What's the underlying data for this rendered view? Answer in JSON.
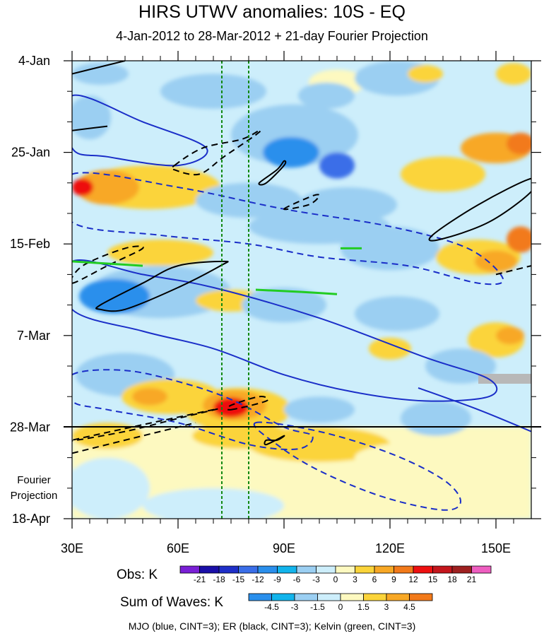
{
  "chart_data": {
    "type": "heatmap",
    "title": "HIRS UTWV anomalies: 10S - EQ",
    "subtitle": "4-Jan-2012 to 28-Mar-2012 + 21-day Fourier Projection",
    "x_ticks": [
      "30E",
      "60E",
      "90E",
      "120E",
      "150E"
    ],
    "x_tick_values": [
      30,
      60,
      90,
      120,
      150
    ],
    "xlim": [
      30,
      160
    ],
    "y_ticks": [
      "4-Jan",
      "25-Jan",
      "15-Feb",
      "7-Mar",
      "28-Mar",
      "18-Apr"
    ],
    "y_tick_days": [
      0,
      21,
      42,
      63,
      84,
      105
    ],
    "ylim_days": [
      0,
      105
    ],
    "projection_start_day": 84,
    "projection_label": [
      "Fourier",
      "Projection"
    ],
    "reference_lines_lon": [
      72.5,
      80
    ],
    "obs_colorbar": {
      "label": "Obs: K",
      "levels": [
        "-21",
        "-18",
        "-15",
        "-12",
        "-9",
        "-6",
        "-3",
        "0",
        "3",
        "6",
        "9",
        "12",
        "15",
        "18",
        "21"
      ],
      "colors": [
        "#7a1fd6",
        "#1a0fa8",
        "#1f2fc8",
        "#3a6ee8",
        "#2a8fec",
        "#12b4ec",
        "#9bcff2",
        "#cdeefb",
        "#fdf9c0",
        "#fbd43a",
        "#f8a825",
        "#f27a1a",
        "#ee1010",
        "#c4161c",
        "#9e2020",
        "#ee5ec0"
      ]
    },
    "waves_colorbar": {
      "label": "Sum of Waves: K",
      "levels": [
        "-4.5",
        "-3",
        "-1.5",
        "0",
        "1.5",
        "3",
        "4.5"
      ],
      "colors": [
        "#2a8fec",
        "#12b4ec",
        "#9bcff2",
        "#cdeefb",
        "#fdf9c0",
        "#fbd43a",
        "#f8a825",
        "#f27a1a"
      ]
    },
    "caption": "MJO (blue, CINT=3); ER (black, CINT=3); Kelvin (green, CINT=3)",
    "anomaly_patches": [
      {
        "lon": 35,
        "day": 13,
        "rx": 6,
        "ry": 5,
        "color": "#9bcff2"
      },
      {
        "lon": 38,
        "day": 3,
        "rx": 8,
        "ry": 2.5,
        "color": "#9bcff2"
      },
      {
        "lon": 70,
        "day": 7,
        "rx": 15,
        "ry": 4,
        "color": "#9bcff2"
      },
      {
        "lon": 93,
        "day": 17,
        "rx": 18,
        "ry": 7,
        "color": "#9bcff2"
      },
      {
        "lon": 92,
        "day": 21,
        "rx": 8,
        "ry": 3.5,
        "color": "#2a8fec"
      },
      {
        "lon": 105,
        "day": 24,
        "rx": 5,
        "ry": 3,
        "color": "#3a6ee8"
      },
      {
        "lon": 105,
        "day": 5,
        "rx": 8,
        "ry": 3,
        "color": "#fdf9c0"
      },
      {
        "lon": 122,
        "day": 4,
        "rx": 12,
        "ry": 4,
        "color": "#9bcff2"
      },
      {
        "lon": 102,
        "day": 8,
        "rx": 8,
        "ry": 3,
        "color": "#9bcff2"
      },
      {
        "lon": 130,
        "day": 3,
        "rx": 5,
        "ry": 2,
        "color": "#fbd43a"
      },
      {
        "lon": 155,
        "day": 3,
        "rx": 5,
        "ry": 2.5,
        "color": "#fbd43a"
      },
      {
        "lon": 150,
        "day": 20,
        "rx": 10,
        "ry": 3.5,
        "color": "#f8a825"
      },
      {
        "lon": 157,
        "day": 19,
        "rx": 4,
        "ry": 2.5,
        "color": "#f27a1a"
      },
      {
        "lon": 135,
        "day": 26,
        "rx": 12,
        "ry": 4,
        "color": "#fbd43a"
      },
      {
        "lon": 52,
        "day": 29,
        "rx": 20,
        "ry": 5,
        "color": "#fbd43a"
      },
      {
        "lon": 40,
        "day": 29,
        "rx": 9,
        "ry": 4,
        "color": "#f8a825"
      },
      {
        "lon": 33,
        "day": 29,
        "rx": 3,
        "ry": 2,
        "color": "#ee1010"
      },
      {
        "lon": 80,
        "day": 32,
        "rx": 15,
        "ry": 4,
        "color": "#9bcff2"
      },
      {
        "lon": 108,
        "day": 33,
        "rx": 14,
        "ry": 4,
        "color": "#9bcff2"
      },
      {
        "lon": 100,
        "day": 38,
        "rx": 20,
        "ry": 4,
        "color": "#9bcff2"
      },
      {
        "lon": 120,
        "day": 43,
        "rx": 14,
        "ry": 5,
        "color": "#9bcff2"
      },
      {
        "lon": 55,
        "day": 44,
        "rx": 15,
        "ry": 3,
        "color": "#fbd43a"
      },
      {
        "lon": 145,
        "day": 45,
        "rx": 12,
        "ry": 4,
        "color": "#fbd43a"
      },
      {
        "lon": 150,
        "day": 46,
        "rx": 6,
        "ry": 2.5,
        "color": "#f8a825"
      },
      {
        "lon": 157,
        "day": 41,
        "rx": 4,
        "ry": 3,
        "color": "#f27a1a"
      },
      {
        "lon": 55,
        "day": 53,
        "rx": 20,
        "ry": 6,
        "color": "#9bcff2"
      },
      {
        "lon": 42,
        "day": 54,
        "rx": 10,
        "ry": 4,
        "color": "#2a8fec"
      },
      {
        "lon": 75,
        "day": 55,
        "rx": 10,
        "ry": 2.5,
        "color": "#fbd43a"
      },
      {
        "lon": 90,
        "day": 56,
        "rx": 12,
        "ry": 4,
        "color": "#9bcff2"
      },
      {
        "lon": 122,
        "day": 58,
        "rx": 12,
        "ry": 4,
        "color": "#9bcff2"
      },
      {
        "lon": 120,
        "day": 66,
        "rx": 6,
        "ry": 2.5,
        "color": "#fbd43a"
      },
      {
        "lon": 150,
        "day": 64,
        "rx": 8,
        "ry": 4,
        "color": "#fbd43a"
      },
      {
        "lon": 154,
        "day": 63,
        "rx": 4,
        "ry": 2,
        "color": "#f8a825"
      },
      {
        "lon": 140,
        "day": 70,
        "rx": 10,
        "ry": 4,
        "color": "#9bcff2"
      },
      {
        "lon": 45,
        "day": 72,
        "rx": 14,
        "ry": 5,
        "color": "#9bcff2"
      },
      {
        "lon": 58,
        "day": 77,
        "rx": 14,
        "ry": 4,
        "color": "#fbd43a"
      },
      {
        "lon": 52,
        "day": 77,
        "rx": 5,
        "ry": 2,
        "color": "#f8a825"
      },
      {
        "lon": 77,
        "day": 80,
        "rx": 15,
        "ry": 5,
        "color": "#fbd43a"
      },
      {
        "lon": 76,
        "day": 79,
        "rx": 9,
        "ry": 3.5,
        "color": "#f8a825"
      },
      {
        "lon": 75,
        "day": 79.5,
        "rx": 5,
        "ry": 2.3,
        "color": "#ee1010"
      },
      {
        "lon": 100,
        "day": 80,
        "rx": 10,
        "ry": 3,
        "color": "#9bcff2"
      },
      {
        "lon": 133,
        "day": 82,
        "rx": 10,
        "ry": 4,
        "color": "#9bcff2"
      },
      {
        "lon": 40,
        "day": 86,
        "rx": 10,
        "ry": 3,
        "color": "#fbd43a"
      },
      {
        "lon": 78,
        "day": 86,
        "rx": 14,
        "ry": 3,
        "color": "#fbd43a"
      },
      {
        "lon": 100,
        "day": 88,
        "rx": 20,
        "ry": 4,
        "color": "#fbd43a"
      },
      {
        "lon": 135,
        "day": 91,
        "rx": 25,
        "ry": 4,
        "color": "#fdf9c0"
      },
      {
        "lon": 40,
        "day": 98,
        "rx": 12,
        "ry": 7,
        "color": "#cdeefb"
      },
      {
        "lon": 70,
        "day": 102,
        "rx": 20,
        "ry": 4,
        "color": "#cdeefb"
      }
    ],
    "wave_contours": [
      {
        "wave": "MJO",
        "color": "#1a2ec8",
        "dashed": false,
        "points": [
          [
            30,
            8
          ],
          [
            50,
            14
          ],
          [
            68,
            20
          ],
          [
            60,
            24
          ],
          [
            40,
            22
          ],
          [
            30,
            20
          ]
        ]
      },
      {
        "wave": "MJO",
        "color": "#1a2ec8",
        "dashed": true,
        "points": [
          [
            30,
            26
          ],
          [
            60,
            29
          ],
          [
            90,
            34
          ],
          [
            120,
            38
          ],
          [
            142,
            43
          ],
          [
            152,
            50
          ],
          [
            145,
            51
          ],
          [
            125,
            47
          ],
          [
            100,
            45
          ],
          [
            80,
            42
          ],
          [
            55,
            40
          ],
          [
            30,
            37
          ]
        ]
      },
      {
        "wave": "MJO",
        "color": "#1a2ec8",
        "dashed": false,
        "points": [
          [
            30,
            46
          ],
          [
            50,
            49
          ],
          [
            70,
            52
          ],
          [
            100,
            59
          ],
          [
            130,
            68
          ],
          [
            148,
            73
          ],
          [
            148,
            77
          ],
          [
            130,
            78
          ],
          [
            110,
            76
          ],
          [
            90,
            72
          ],
          [
            70,
            66
          ],
          [
            50,
            62
          ],
          [
            30,
            57
          ]
        ]
      },
      {
        "wave": "MJO",
        "color": "#1a2ec8",
        "dashed": false,
        "points": [
          [
            128,
            75
          ],
          [
            145,
            80
          ],
          [
            160,
            85
          ]
        ]
      },
      {
        "wave": "MJO",
        "color": "#1a2ec8",
        "dashed": true,
        "points": [
          [
            30,
            72
          ],
          [
            45,
            71
          ],
          [
            62,
            74
          ],
          [
            76,
            78
          ],
          [
            90,
            84
          ],
          [
            98,
            86
          ],
          [
            94,
            89
          ],
          [
            80,
            88
          ],
          [
            60,
            83
          ],
          [
            40,
            80
          ],
          [
            30,
            78
          ]
        ]
      },
      {
        "wave": "MJO",
        "color": "#1a2ec8",
        "dashed": true,
        "points": [
          [
            82,
            83
          ],
          [
            100,
            85
          ],
          [
            120,
            90
          ],
          [
            135,
            96
          ],
          [
            140,
            101
          ],
          [
            135,
            103
          ],
          [
            118,
            100
          ],
          [
            100,
            94
          ],
          [
            88,
            88
          ]
        ]
      },
      {
        "wave": "ER",
        "color": "#000000",
        "dashed": false,
        "points": [
          [
            30,
            3
          ],
          [
            45,
            0
          ]
        ]
      },
      {
        "wave": "ER",
        "color": "#000000",
        "dashed": false,
        "points": [
          [
            30,
            16
          ],
          [
            40,
            15
          ]
        ]
      },
      {
        "wave": "ER",
        "color": "#000000",
        "dashed": true,
        "points": [
          [
            59,
            24
          ],
          [
            67,
            20
          ],
          [
            78,
            18
          ],
          [
            83,
            16
          ],
          [
            82,
            17
          ],
          [
            73,
            22
          ],
          [
            66,
            26
          ],
          [
            59,
            25
          ]
        ]
      },
      {
        "wave": "ER",
        "color": "#000000",
        "dashed": false,
        "points": [
          [
            83,
            28
          ],
          [
            88,
            25
          ],
          [
            90,
            23
          ],
          [
            90,
            24
          ],
          [
            85,
            28
          ]
        ]
      },
      {
        "wave": "ER",
        "color": "#000000",
        "dashed": true,
        "points": [
          [
            90,
            34
          ],
          [
            98,
            31
          ],
          [
            100,
            31
          ],
          [
            97,
            33
          ]
        ]
      },
      {
        "wave": "ER",
        "color": "#000000",
        "dashed": false,
        "points": [
          [
            132,
            40
          ],
          [
            145,
            33
          ],
          [
            160,
            27
          ],
          [
            160,
            30
          ],
          [
            148,
            37
          ],
          [
            134,
            41
          ]
        ]
      },
      {
        "wave": "ER",
        "color": "#000000",
        "dashed": true,
        "points": [
          [
            150,
            49
          ],
          [
            160,
            47
          ]
        ]
      },
      {
        "wave": "ER",
        "color": "#000000",
        "dashed": true,
        "points": [
          [
            30,
            51
          ],
          [
            40,
            47
          ],
          [
            50,
            43
          ],
          [
            45,
            43
          ],
          [
            33,
            47
          ]
        ]
      },
      {
        "wave": "ER",
        "color": "#000000",
        "dashed": false,
        "points": [
          [
            38,
            56
          ],
          [
            50,
            51
          ],
          [
            60,
            47
          ],
          [
            73,
            46
          ],
          [
            72,
            47
          ],
          [
            60,
            52
          ],
          [
            45,
            57
          ],
          [
            38,
            57
          ]
        ]
      },
      {
        "wave": "ER",
        "color": "#000000",
        "dashed": true,
        "points": [
          [
            75,
            80
          ],
          [
            85,
            78
          ],
          [
            83,
            77
          ],
          [
            75,
            79
          ]
        ]
      },
      {
        "wave": "ER",
        "color": "#000000",
        "dashed": false,
        "points": [
          [
            85,
            88
          ],
          [
            90,
            86
          ],
          [
            88,
            87
          ],
          [
            85,
            87
          ]
        ]
      },
      {
        "wave": "ER",
        "color": "#000000",
        "dashed": true,
        "points": [
          [
            30,
            87
          ],
          [
            45,
            85
          ],
          [
            60,
            82
          ],
          [
            70,
            80
          ]
        ]
      },
      {
        "wave": "ER",
        "color": "#000000",
        "dashed": true,
        "points": [
          [
            30,
            90
          ],
          [
            50,
            86
          ],
          [
            65,
            83
          ]
        ]
      },
      {
        "wave": "Kelvin",
        "color": "#22cc22",
        "dashed": false,
        "points": [
          [
            30,
            46
          ],
          [
            40,
            46.5
          ],
          [
            50,
            47
          ]
        ]
      },
      {
        "wave": "Kelvin",
        "color": "#22cc22",
        "dashed": false,
        "points": [
          [
            82,
            52.5
          ],
          [
            95,
            53
          ]
        ]
      },
      {
        "wave": "Kelvin",
        "color": "#22cc22",
        "dashed": false,
        "points": [
          [
            106,
            43
          ],
          [
            112,
            43
          ]
        ]
      },
      {
        "wave": "Kelvin",
        "color": "#22cc22",
        "dashed": false,
        "points": [
          [
            95,
            53
          ],
          [
            105,
            53.5
          ]
        ]
      }
    ]
  }
}
